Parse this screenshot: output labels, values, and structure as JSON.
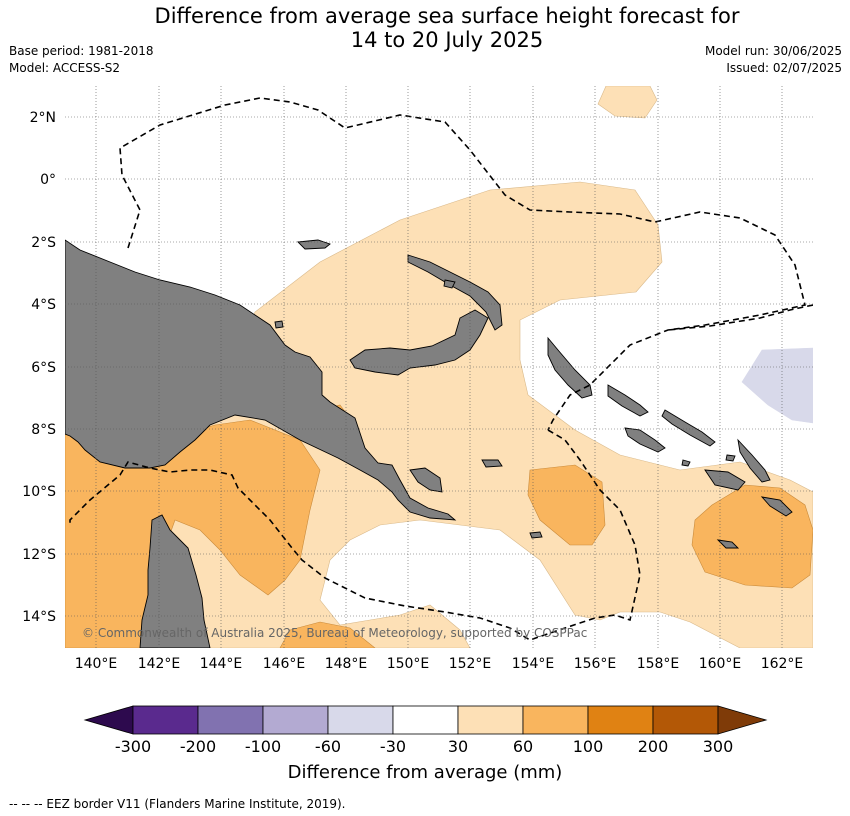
{
  "header": {
    "title_line1": "Difference from average sea surface height forecast for",
    "title_line2": "14 to 20 July 2025",
    "base_period": "Base period: 1981-2018",
    "model": "Model: ACCESS-S2",
    "model_run": "Model run: 30/06/2025",
    "issued": "Issued: 02/07/2025"
  },
  "map": {
    "lat_labels": [
      "2°N",
      "0°",
      "2°S",
      "4°S",
      "6°S",
      "8°S",
      "10°S",
      "12°S",
      "14°S"
    ],
    "lon_labels": [
      "140°E",
      "142°E",
      "144°E",
      "146°E",
      "148°E",
      "150°E",
      "152°E",
      "154°E",
      "156°E",
      "158°E",
      "160°E",
      "162°E"
    ],
    "copyright": "© Commonwealth of Australia 2025, Bureau of Meteorology, supported by COSPPac",
    "land_color": "#808080",
    "category_colors": {
      "neg_60_to_30": "#d8d9ea",
      "pos_30_to_60": "#fde0b6",
      "pos_60_to_100": "#f9b55e"
    }
  },
  "colorbar": {
    "tick_labels": [
      "-300",
      "-200",
      "-100",
      "-60",
      "-30",
      "30",
      "60",
      "100",
      "200",
      "300"
    ],
    "colors": [
      "#2d0a4e",
      "#5a2a8e",
      "#8172b0",
      "#b3aad2",
      "#d8d9ea",
      "#ffffff",
      "#fde0b6",
      "#f9b55e",
      "#e08213",
      "#b35806",
      "#7f3b08"
    ],
    "title": "Difference from average (mm)"
  },
  "footer": {
    "legend": "--  --  -- EEZ border V11 (Flanders Marine Institute, 2019)."
  }
}
